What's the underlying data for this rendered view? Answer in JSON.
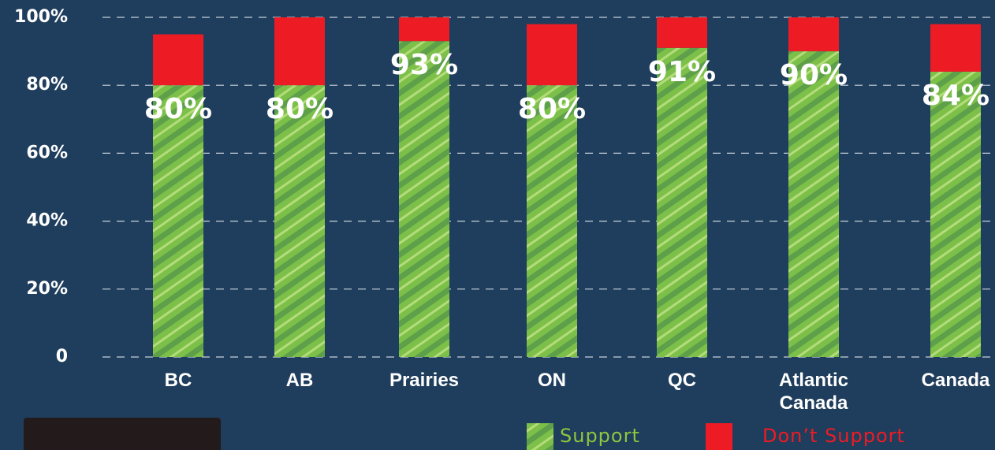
{
  "chart_data": {
    "type": "stacked_bar",
    "categories": [
      "BC",
      "AB",
      "Prairies",
      "ON",
      "QC",
      "Atlantic Canada",
      "Canada"
    ],
    "series": [
      {
        "name": "Support",
        "color": "#8dc63f",
        "values": [
          80,
          80,
          93,
          80,
          91,
          90,
          84
        ],
        "value_labels": [
          "80%",
          "80%",
          "93%",
          "80%",
          "91%",
          "90%",
          "84%"
        ]
      },
      {
        "name": "Don’t Support",
        "color": "#ed1c24",
        "values": [
          15,
          20,
          7,
          18,
          9,
          10,
          14
        ]
      }
    ],
    "ylim": [
      0,
      100
    ],
    "yticks": [
      0,
      {
        "value": 20,
        "label": "20%"
      },
      {
        "value": 40,
        "label": "40%"
      },
      {
        "value": 60,
        "label": "60%"
      },
      {
        "value": 80,
        "label": "80%"
      },
      {
        "value": 100,
        "label": "100%"
      }
    ],
    "grid": true
  }
}
